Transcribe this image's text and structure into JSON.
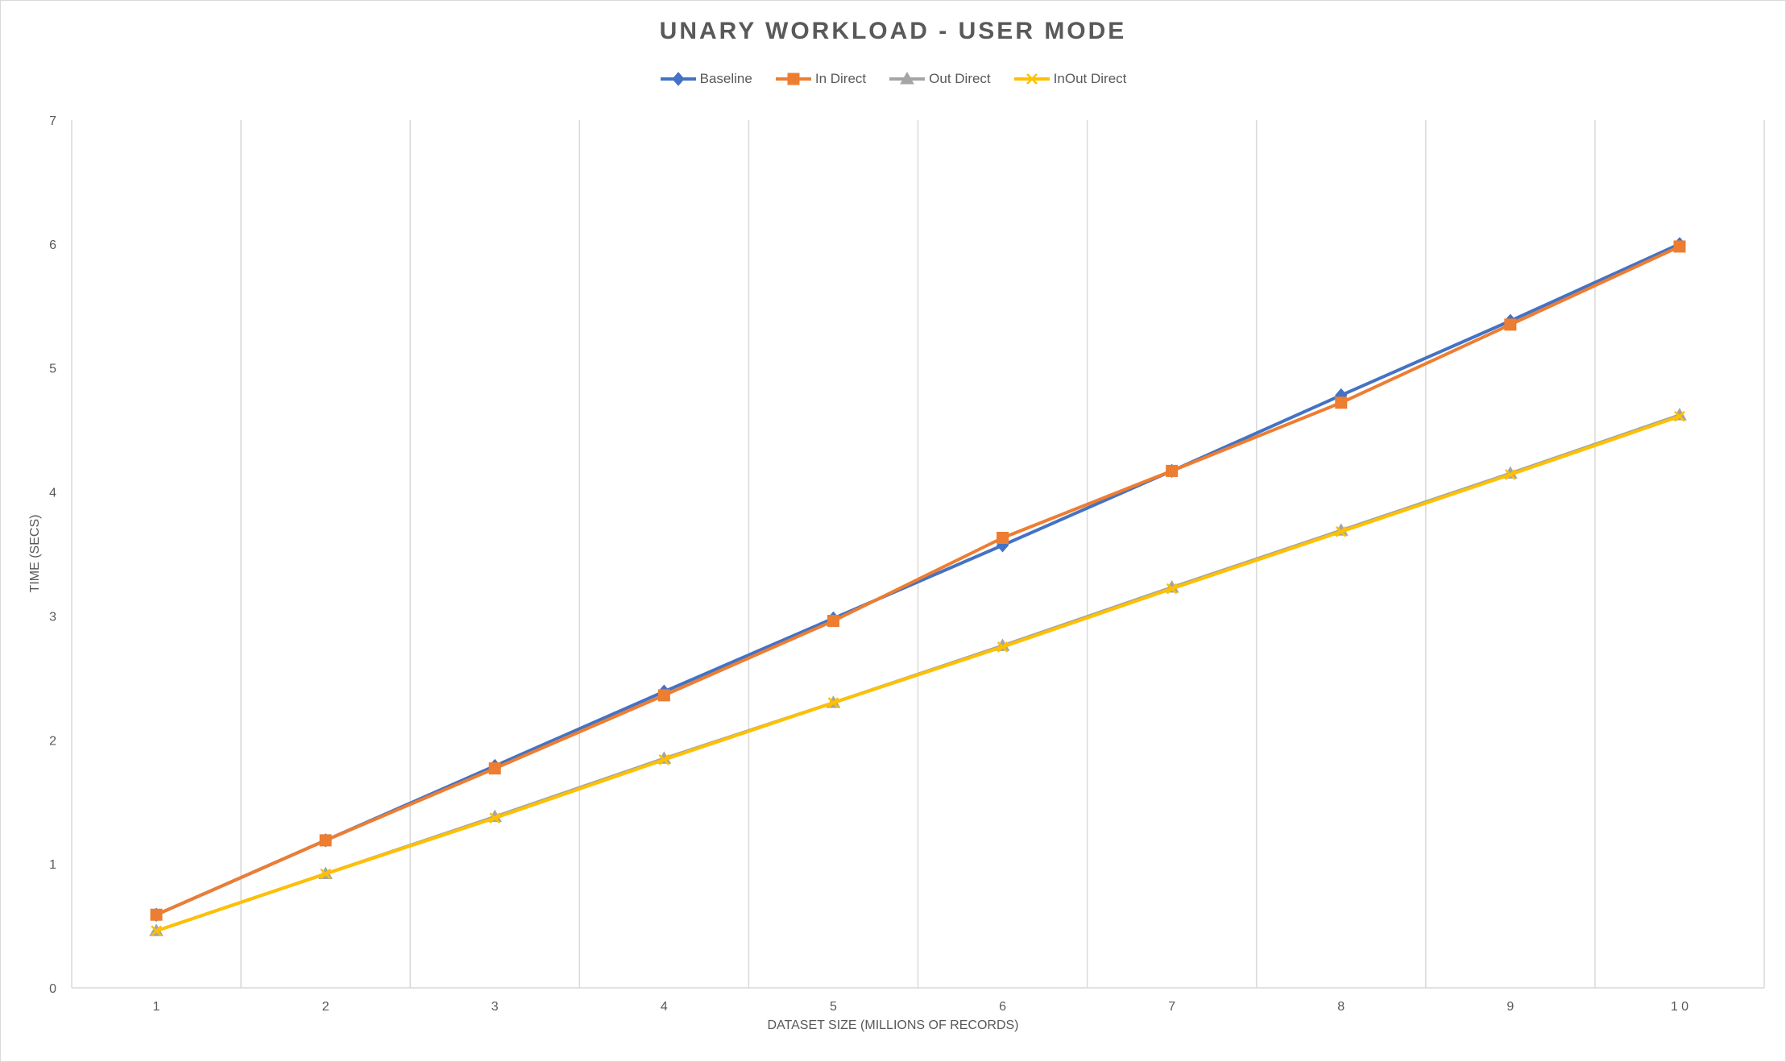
{
  "chart_data": {
    "type": "line",
    "title": "UNARY WORKLOAD - USER MODE",
    "xlabel": "DATASET SIZE (MILLIONS OF RECORDS)",
    "ylabel": "TIME (SECS)",
    "categories": [
      "1",
      "2",
      "3",
      "4",
      "5",
      "6",
      "7",
      "8",
      "9",
      "1 0"
    ],
    "ylim": [
      0,
      7
    ],
    "yticks": [
      "0",
      "1",
      "2",
      "3",
      "4",
      "5",
      "6",
      "7"
    ],
    "grid": "vertical",
    "legend_position": "top",
    "series": [
      {
        "name": "Baseline",
        "color": "#4472c4",
        "marker": "diamond",
        "values": [
          0.59,
          1.19,
          1.79,
          2.39,
          2.98,
          3.57,
          4.17,
          4.78,
          5.38,
          6.0
        ]
      },
      {
        "name": "In Direct",
        "color": "#ed7d31",
        "marker": "square",
        "values": [
          0.59,
          1.19,
          1.77,
          2.36,
          2.96,
          3.63,
          4.17,
          4.72,
          5.35,
          5.98
        ]
      },
      {
        "name": "Out Direct",
        "color": "#a5a5a5",
        "marker": "triangle",
        "values": [
          0.46,
          0.92,
          1.38,
          1.85,
          2.3,
          2.76,
          3.23,
          3.69,
          4.15,
          4.62
        ]
      },
      {
        "name": "InOut Direct",
        "color": "#ffc000",
        "marker": "x",
        "values": [
          0.46,
          0.92,
          1.37,
          1.84,
          2.3,
          2.75,
          3.22,
          3.68,
          4.14,
          4.61
        ]
      }
    ]
  }
}
